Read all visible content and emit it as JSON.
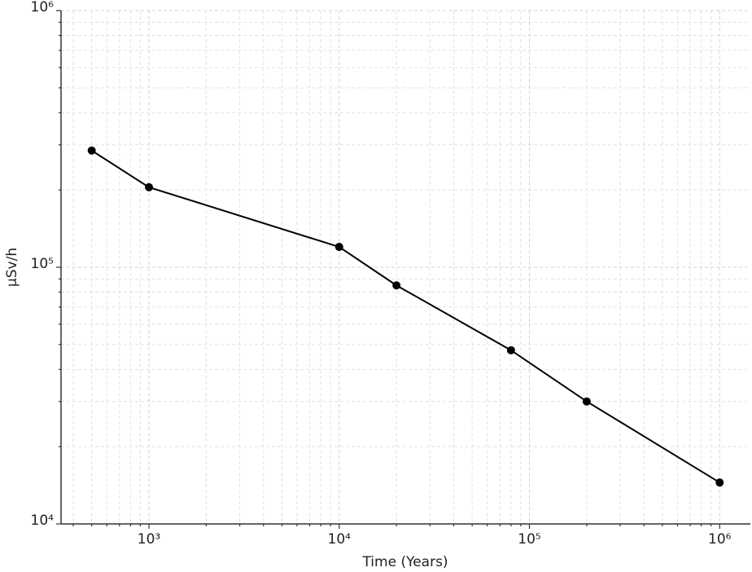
{
  "chart_data": {
    "type": "line",
    "x_label": "Time (Years)",
    "y_label": "μSv/h",
    "x": [
      500,
      1000,
      10000,
      20000,
      80000,
      200000,
      1000000
    ],
    "series": [
      {
        "color": "#000000",
        "values": [
          285000,
          205000,
          120000,
          85000,
          47500,
          30000,
          14500
        ]
      }
    ],
    "x_log": true,
    "y_log": true,
    "xlim": [
      345,
      1450000
    ],
    "ylim": [
      10000,
      1000000
    ],
    "xticks": [
      {
        "value": 1000,
        "label": "10³"
      },
      {
        "value": 10000,
        "label": "10⁴"
      },
      {
        "value": 100000,
        "label": "10⁵"
      },
      {
        "value": 1000000,
        "label": "10⁶"
      }
    ],
    "yticks": [
      {
        "value": 10000,
        "label": "10⁴"
      },
      {
        "value": 100000,
        "label": "10⁵"
      },
      {
        "value": 1000000,
        "label": "10⁶"
      }
    ],
    "grid": true,
    "minor_grid": true
  }
}
